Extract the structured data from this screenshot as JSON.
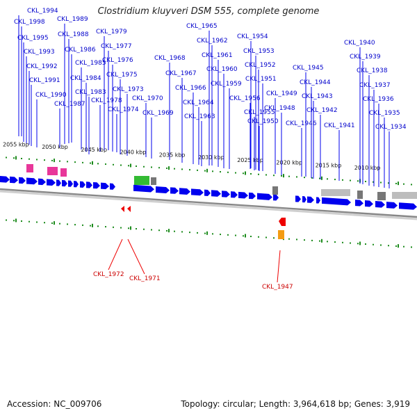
{
  "title": "Clostridium kluyveri DSM 555, complete genome",
  "footer": {
    "accession": "Accession: NC_009706",
    "summary": "Topology: circular; Length: 3,964,618 bp; Genes: 3,919"
  },
  "colors": {
    "forward_gene": "#0000ee",
    "reverse_gene": "#ee0000",
    "forward_label": "#0000cc",
    "reverse_label": "#cc0000",
    "rna_pink": "#e8379a",
    "rna_green": "#33bb33",
    "rna_orange": "#f39c12",
    "grey_feature": "#999999",
    "tick_green": "#1a8a1a"
  },
  "scale_labels": [
    "2055 kbp",
    "2050 kbp",
    "2045 kbp",
    "2040 kbp",
    "2035 kbp",
    "2030 kbp",
    "2025 kbp",
    "2020 kbp",
    "2015 kbp",
    "2010 kbp"
  ],
  "forward_labels": [
    "CKL_1994",
    "CKL_1998",
    "CKL_1989",
    "CKL_1995",
    "CKL_1988",
    "CKL_1979",
    "CKL_1993",
    "CKL_1986",
    "CKL_1977",
    "CKL_1992",
    "CKL_1985",
    "CKL_1976",
    "CKL_1991",
    "CKL_1984",
    "CKL_1975",
    "CKL_1983",
    "CKL_1973",
    "CKL_1990",
    "CKL_1978",
    "CKL_1987",
    "CKL_1974",
    "CKL_1970",
    "CKL_1969",
    "CKL_1968",
    "CKL_1967",
    "CKL_1966",
    "CKL_1965",
    "CKL_1962",
    "CKL_1961",
    "CKL_1960",
    "CKL_1959",
    "CKL_1964",
    "CKL_1963",
    "CKL_1954",
    "CKL_1953",
    "CKL_1952",
    "CKL_1951",
    "CKL_1956",
    "CKL_1955",
    "CKL_1949",
    "CKL_1948",
    "CKL_1950",
    "CKL_1945",
    "CKL_1944",
    "CKL_1943",
    "CKL_1942",
    "CKL_1946",
    "CKL_1941",
    "CKL_1940",
    "CKL_1939",
    "CKL_1938",
    "CKL_1937",
    "CKL_1936",
    "CKL_1935",
    "CKL_1934"
  ],
  "reverse_labels": [
    "CKL_1972",
    "CKL_1971",
    "CKL_1947"
  ]
}
